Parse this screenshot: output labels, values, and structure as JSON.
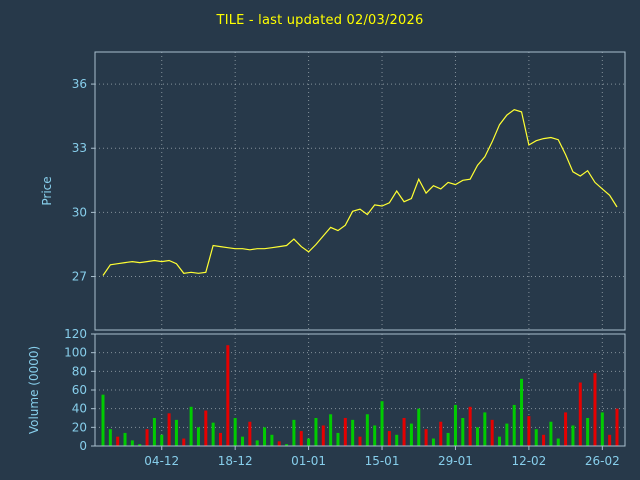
{
  "chart_data": {
    "type": "line+bar",
    "title": "TILE - last updated 02/03/2026",
    "xtick_labels": [
      "04-12",
      "18-12",
      "01-01",
      "15-01",
      "29-01",
      "12-02",
      "26-02"
    ],
    "dates": [
      "24-11",
      "25-11",
      "26-11",
      "27-11",
      "28-11",
      "01-12",
      "02-12",
      "03-12",
      "04-12",
      "05-12",
      "08-12",
      "09-12",
      "10-12",
      "11-12",
      "12-12",
      "15-12",
      "16-12",
      "17-12",
      "18-12",
      "19-12",
      "22-12",
      "23-12",
      "24-12",
      "25-12",
      "26-12",
      "29-12",
      "30-12",
      "31-12",
      "01-01",
      "02-01",
      "05-01",
      "06-01",
      "07-01",
      "08-01",
      "09-01",
      "12-01",
      "13-01",
      "14-01",
      "15-01",
      "16-01",
      "19-01",
      "20-01",
      "21-01",
      "22-01",
      "23-01",
      "26-01",
      "27-01",
      "28-01",
      "29-01",
      "30-01",
      "02-02",
      "03-02",
      "04-02",
      "05-02",
      "06-02",
      "09-02",
      "10-02",
      "11-02",
      "12-02",
      "13-02",
      "16-02",
      "17-02",
      "18-02",
      "19-02",
      "20-02",
      "23-02",
      "24-02",
      "25-02",
      "26-02",
      "27-02",
      "02-03"
    ],
    "price": {
      "ylabel": "Price",
      "ylim": [
        24.5,
        37.5
      ],
      "yticks": [
        27,
        30,
        33,
        36
      ],
      "values": [
        27.05,
        27.55,
        27.6,
        27.65,
        27.7,
        27.65,
        27.7,
        27.75,
        27.7,
        27.75,
        27.6,
        27.15,
        27.2,
        27.15,
        27.2,
        28.45,
        28.4,
        28.35,
        28.3,
        28.3,
        28.25,
        28.3,
        28.3,
        28.35,
        28.4,
        28.45,
        28.75,
        28.4,
        28.15,
        28.5,
        28.9,
        29.3,
        29.15,
        29.4,
        30.05,
        30.15,
        29.9,
        30.35,
        30.3,
        30.45,
        31.0,
        30.5,
        30.65,
        31.55,
        30.9,
        31.25,
        31.1,
        31.4,
        31.3,
        31.5,
        31.55,
        32.2,
        32.6,
        33.3,
        34.1,
        34.55,
        34.8,
        34.7,
        33.15,
        33.35,
        33.45,
        33.5,
        33.4,
        32.7,
        31.9,
        31.7,
        31.95,
        31.4,
        31.1,
        30.8,
        30.25
      ]
    },
    "volume": {
      "ylabel": "Volume (0000)",
      "ylim": [
        0,
        120
      ],
      "yticks": [
        0,
        20,
        40,
        60,
        80,
        100,
        120
      ],
      "values": [
        55,
        18,
        10,
        14,
        6,
        2,
        18,
        30,
        12,
        35,
        28,
        8,
        42,
        20,
        38,
        25,
        14,
        108,
        30,
        10,
        26,
        6,
        20,
        12,
        5,
        2,
        28,
        16,
        8,
        30,
        22,
        34,
        14,
        30,
        28,
        10,
        34,
        22,
        48,
        16,
        12,
        30,
        24,
        40,
        18,
        8,
        26,
        14,
        44,
        30,
        42,
        20,
        36,
        28,
        10,
        24,
        44,
        72,
        32,
        18,
        12,
        26,
        8,
        36,
        22,
        68,
        30,
        78,
        36,
        12,
        40
      ],
      "colors": [
        "g",
        "g",
        "r",
        "g",
        "g",
        "g",
        "r",
        "g",
        "g",
        "r",
        "g",
        "r",
        "g",
        "g",
        "r",
        "g",
        "r",
        "r",
        "g",
        "g",
        "r",
        "g",
        "g",
        "g",
        "r",
        "g",
        "g",
        "r",
        "g",
        "g",
        "r",
        "g",
        "g",
        "r",
        "g",
        "r",
        "g",
        "g",
        "g",
        "r",
        "g",
        "r",
        "g",
        "g",
        "r",
        "g",
        "r",
        "g",
        "g",
        "g",
        "r",
        "g",
        "g",
        "r",
        "g",
        "g",
        "g",
        "g",
        "r",
        "g",
        "r",
        "g",
        "g",
        "r",
        "g",
        "r",
        "g",
        "r",
        "g",
        "r",
        "r"
      ]
    },
    "colors": {
      "background": "#27394a",
      "title": "#ffff00",
      "tick_label": "#87ceeb",
      "axis_label": "#87ceeb",
      "spine": "#a9bfce",
      "grid": "#dfe6ea",
      "price_line": "#ffff33",
      "vol_up": "#00cc00",
      "vol_down": "#e60000"
    }
  }
}
